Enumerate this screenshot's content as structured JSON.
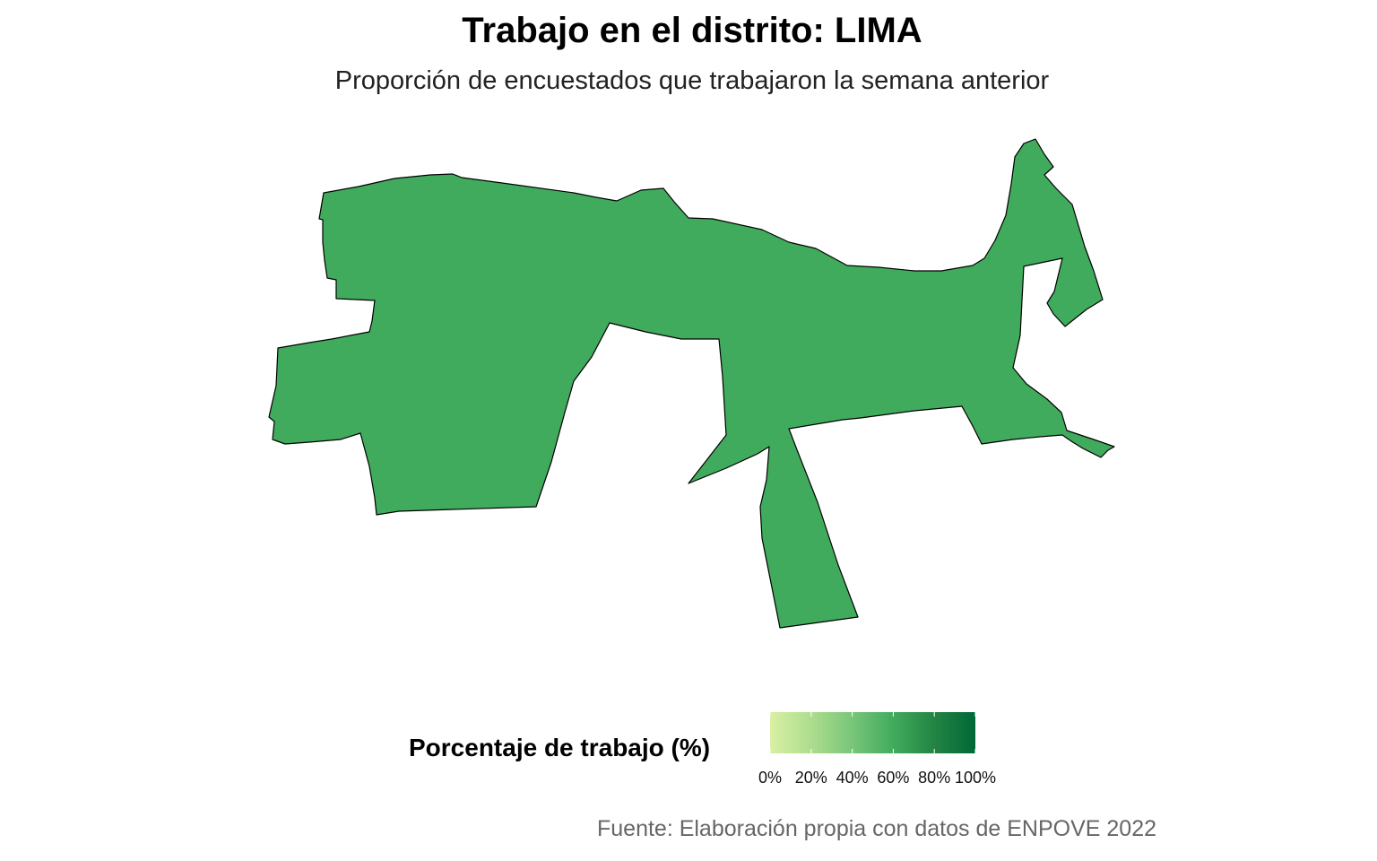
{
  "title": "Trabajo en el distrito: LIMA",
  "subtitle": "Proporción de encuestados que trabajaron la semana anterior",
  "caption": "Fuente: Elaboración propia con datos de ENPOVE 2022",
  "map": {
    "region": "LIMA",
    "fill_color": "#41ab5d",
    "border_color": "#000000"
  },
  "legend": {
    "title": "Porcentaje de trabajo (%)",
    "scale_colors": [
      "#d9f0a3",
      "#addd8e",
      "#78c679",
      "#41ab5d",
      "#238443",
      "#006837"
    ],
    "ticks": [
      {
        "value": 0,
        "label": "0%"
      },
      {
        "value": 20,
        "label": "20%"
      },
      {
        "value": 40,
        "label": "40%"
      },
      {
        "value": 60,
        "label": "60%"
      },
      {
        "value": 80,
        "label": "80%"
      },
      {
        "value": 100,
        "label": "100%"
      }
    ]
  }
}
